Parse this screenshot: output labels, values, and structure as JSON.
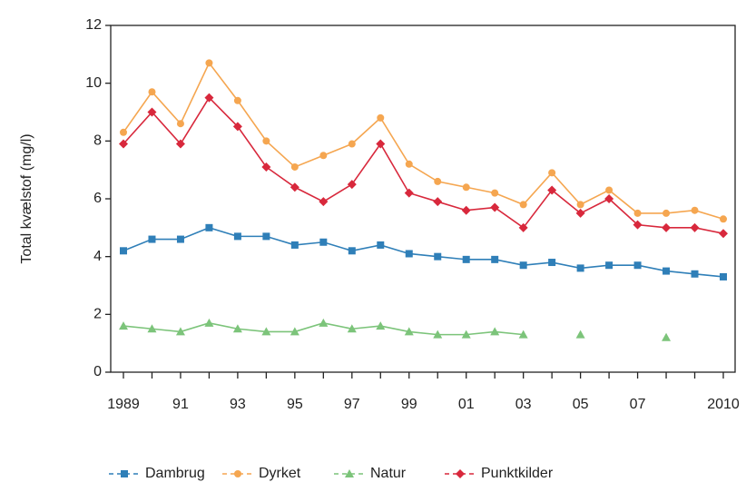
{
  "chart_data": {
    "type": "line",
    "y_label": "Total kvælstof (mg/l)",
    "categories": [
      "1989",
      null,
      "91",
      null,
      "93",
      null,
      "95",
      null,
      "97",
      null,
      "99",
      null,
      "01",
      null,
      "03",
      null,
      "05",
      null,
      "07",
      null,
      null,
      "2010"
    ],
    "ylim": [
      0,
      12
    ],
    "yticks": [
      0,
      2,
      4,
      6,
      8,
      10,
      12
    ],
    "grid": false,
    "legend": "bottom",
    "series": [
      {
        "name": "Dambrug",
        "color": "#2f7fb8",
        "marker": "square",
        "values": [
          4.2,
          4.6,
          4.6,
          5.0,
          4.7,
          4.7,
          4.4,
          4.5,
          4.2,
          4.4,
          4.1,
          4.0,
          3.9,
          3.9,
          3.7,
          3.8,
          3.6,
          3.7,
          3.7,
          3.5,
          3.4,
          3.3
        ]
      },
      {
        "name": "Dyrket",
        "color": "#f5a650",
        "marker": "circle",
        "values": [
          8.3,
          9.7,
          8.6,
          10.7,
          9.4,
          8.0,
          7.1,
          7.5,
          7.9,
          8.8,
          7.2,
          6.6,
          6.4,
          6.2,
          5.8,
          6.9,
          5.8,
          6.3,
          5.5,
          5.5,
          5.6,
          5.3
        ]
      },
      {
        "name": "Natur",
        "color": "#7cc47a",
        "marker": "triangle",
        "values": [
          1.6,
          1.5,
          1.4,
          1.7,
          1.5,
          1.4,
          1.4,
          1.7,
          1.5,
          1.6,
          1.4,
          1.3,
          1.3,
          1.4,
          1.3,
          null,
          1.3,
          null,
          null,
          1.2,
          null,
          null
        ]
      },
      {
        "name": "Punktkilder",
        "color": "#d8283c",
        "marker": "diamond",
        "values": [
          7.9,
          9.0,
          7.9,
          9.5,
          8.5,
          7.1,
          6.4,
          5.9,
          6.5,
          7.9,
          6.2,
          5.9,
          5.6,
          5.7,
          5.0,
          6.3,
          5.5,
          6.0,
          5.1,
          5.0,
          5.0,
          4.8
        ]
      }
    ]
  }
}
